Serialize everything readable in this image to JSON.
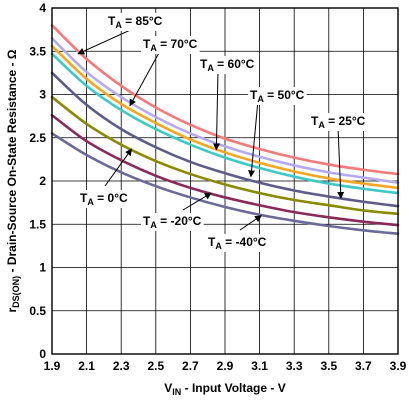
{
  "chart_data": {
    "type": "line",
    "title": "",
    "xlabel": {
      "main": "V",
      "sub": "IN",
      "rest": " - Input Voltage - V"
    },
    "ylabel": {
      "main": "r",
      "sub": "DS(ON)",
      "rest": " - Drain-Source On-State Resistance - Ω"
    },
    "xlim": [
      1.9,
      3.9
    ],
    "ylim": [
      0,
      4
    ],
    "xticks": [
      "1.9",
      "2.1",
      "2.3",
      "2.5",
      "2.7",
      "2.9",
      "3.1",
      "3.3",
      "3.5",
      "3.7",
      "3.9"
    ],
    "yticks": [
      "0",
      "0.5",
      "1",
      "1.5",
      "2",
      "2.5",
      "3",
      "3.5",
      "4"
    ],
    "grid": true,
    "series": [
      {
        "name": "TA = 85°C",
        "color": "#f47a7a",
        "x": [
          1.9,
          2.1,
          2.3,
          2.5,
          2.7,
          2.9,
          3.1,
          3.3,
          3.5,
          3.7,
          3.9
        ],
        "y": [
          3.8,
          3.41,
          3.1,
          2.85,
          2.65,
          2.49,
          2.37,
          2.27,
          2.19,
          2.13,
          2.08
        ]
      },
      {
        "name": "TA = 70°C",
        "color": "#b3aaf0",
        "x": [
          1.9,
          2.1,
          2.3,
          2.5,
          2.7,
          2.9,
          3.1,
          3.3,
          3.5,
          3.7,
          3.9
        ],
        "y": [
          3.65,
          3.26,
          2.97,
          2.74,
          2.55,
          2.4,
          2.28,
          2.18,
          2.1,
          2.04,
          1.98
        ]
      },
      {
        "name": "TA = 60°C",
        "color": "#f5a623",
        "x": [
          1.9,
          2.1,
          2.3,
          2.5,
          2.7,
          2.9,
          3.1,
          3.3,
          3.5,
          3.7,
          3.9
        ],
        "y": [
          3.56,
          3.18,
          2.89,
          2.67,
          2.48,
          2.33,
          2.21,
          2.11,
          2.03,
          1.97,
          1.92
        ]
      },
      {
        "name": "TA = 50°C",
        "color": "#3ec9c9",
        "x": [
          1.9,
          2.1,
          2.3,
          2.5,
          2.7,
          2.9,
          3.1,
          3.3,
          3.5,
          3.7,
          3.9
        ],
        "y": [
          3.47,
          3.1,
          2.82,
          2.6,
          2.42,
          2.27,
          2.15,
          2.05,
          1.97,
          1.91,
          1.86
        ]
      },
      {
        "name": "TA = 25°C",
        "color": "#5c5c8a",
        "x": [
          1.9,
          2.1,
          2.3,
          2.5,
          2.7,
          2.9,
          3.1,
          3.3,
          3.5,
          3.7,
          3.9
        ],
        "y": [
          3.25,
          2.88,
          2.6,
          2.39,
          2.22,
          2.09,
          1.98,
          1.89,
          1.82,
          1.76,
          1.71
        ]
      },
      {
        "name": "TA = 0°C",
        "color": "#8a8a00",
        "x": [
          1.9,
          2.1,
          2.3,
          2.5,
          2.7,
          2.9,
          3.1,
          3.3,
          3.5,
          3.7,
          3.9
        ],
        "y": [
          2.97,
          2.66,
          2.42,
          2.23,
          2.08,
          1.96,
          1.86,
          1.78,
          1.72,
          1.66,
          1.62
        ]
      },
      {
        "name": "TA = -20°C",
        "color": "#8a2a5a",
        "x": [
          1.9,
          2.1,
          2.3,
          2.5,
          2.7,
          2.9,
          3.1,
          3.3,
          3.5,
          3.7,
          3.9
        ],
        "y": [
          2.76,
          2.46,
          2.24,
          2.06,
          1.92,
          1.81,
          1.72,
          1.64,
          1.58,
          1.53,
          1.49
        ]
      },
      {
        "name": "TA = -40°C",
        "color": "#6a6a9a",
        "x": [
          1.9,
          2.1,
          2.3,
          2.5,
          2.7,
          2.9,
          3.1,
          3.3,
          3.5,
          3.7,
          3.9
        ],
        "y": [
          2.55,
          2.3,
          2.1,
          1.94,
          1.81,
          1.7,
          1.61,
          1.54,
          1.48,
          1.43,
          1.39
        ]
      }
    ],
    "annotations": [
      {
        "main": "T",
        "sub": "A",
        "rest": " = 85°C",
        "arrow_x": 2.05,
        "arrow_y": 3.47
      },
      {
        "main": "T",
        "sub": "A",
        "rest": " = 70°C",
        "arrow_x": 2.35,
        "arrow_y": 2.87
      },
      {
        "main": "T",
        "sub": "A",
        "rest": " = 60°C",
        "arrow_x": 2.85,
        "arrow_y": 2.36
      },
      {
        "main": "T",
        "sub": "A",
        "rest": " = 50°C",
        "arrow_x": 3.05,
        "arrow_y": 2.05
      },
      {
        "main": "T",
        "sub": "A",
        "rest": " = 25°C",
        "arrow_x": 3.57,
        "arrow_y": 1.8
      },
      {
        "main": "T",
        "sub": "A",
        "rest": " = 0°C",
        "arrow_x": 2.36,
        "arrow_y": 2.37
      },
      {
        "main": "T",
        "sub": "A",
        "rest": " = -20°C",
        "arrow_x": 2.82,
        "arrow_y": 1.86
      },
      {
        "main": "T",
        "sub": "A",
        "rest": " = -40°C",
        "arrow_x": 3.11,
        "arrow_y": 1.6
      }
    ]
  }
}
